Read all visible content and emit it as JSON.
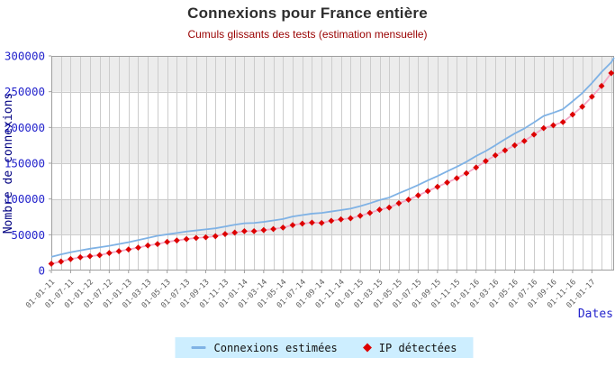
{
  "header": {
    "title": "Connexions pour France entière",
    "subtitle": "Cumuls glissants des tests (estimation mensuelle)"
  },
  "y_axis": {
    "title": "Nombre de connexions",
    "tick_labels": [
      "0",
      "50000",
      "100000",
      "150000",
      "200000",
      "250000",
      "300000"
    ]
  },
  "x_axis": {
    "title": "Dates"
  },
  "legend": {
    "items": [
      {
        "label": "Connexions estimées",
        "swatch": "line"
      },
      {
        "label": "IP détectées",
        "swatch": "diamond"
      }
    ]
  },
  "colors": {
    "title": "#2e2e2e",
    "subtitle": "#990000",
    "band": "#ececec",
    "grid": "#cccccc",
    "border": "#9e9e9e",
    "yTick": "#2424cc",
    "xTick": "#5a5a5a",
    "yTitle": "#000080",
    "xTitle": "#2424cc",
    "legend_bg": "#cdeeff",
    "estimated_line": "#7fb2e5",
    "detected_line": "#f4a8c6",
    "detected_marker": "#dd0000"
  },
  "chart_data": {
    "type": "line",
    "title": "Connexions pour France entière",
    "subtitle": "Cumuls glissants des tests (estimation mensuelle)",
    "xlabel": "Dates",
    "ylabel": "Nombre de connexions",
    "ylim": [
      0,
      300000
    ],
    "y_tick_step": 50000,
    "grid": true,
    "legend_position": "bottom",
    "x_tick_labels": [
      "01-01-11",
      "01-07-11",
      "01-01-12",
      "01-07-12",
      "01-01-13",
      "01-03-13",
      "01-05-13",
      "01-07-13",
      "01-09-13",
      "01-11-13",
      "01-01-14",
      "01-03-14",
      "01-05-14",
      "01-07-14",
      "01-09-14",
      "01-11-14",
      "01-01-15",
      "01-03-15",
      "01-05-15",
      "01-07-15",
      "01-09-15",
      "01-11-15",
      "01-01-16",
      "01-03-16",
      "01-05-16",
      "01-07-16",
      "01-09-16",
      "01-11-16",
      "01-01-17"
    ],
    "label_every": 2,
    "series": [
      {
        "name": "Connexions estimées",
        "style": "line",
        "values": [
          19000,
          22500,
          25500,
          28000,
          30500,
          32500,
          34500,
          37000,
          39500,
          42500,
          45500,
          48500,
          50500,
          52500,
          54500,
          56000,
          57500,
          59000,
          61500,
          64000,
          66000,
          66500,
          68000,
          70000,
          72000,
          75500,
          77500,
          79500,
          80500,
          82500,
          84500,
          86500,
          90000,
          94000,
          98500,
          102000,
          108000,
          113500,
          119500,
          126000,
          132000,
          138500,
          145000,
          152000,
          160000,
          167000,
          175000,
          183500,
          191500,
          198500,
          207000,
          216000,
          220500,
          225500,
          236500,
          248000,
          262000,
          277500,
          291000
        ]
      },
      {
        "name": "IP détectées",
        "style": "line+diamond",
        "values": [
          9500,
          12500,
          16000,
          18500,
          20000,
          21500,
          24500,
          27000,
          29500,
          32000,
          35000,
          37000,
          40000,
          42000,
          44000,
          45500,
          46500,
          48000,
          51000,
          53000,
          55000,
          55000,
          56500,
          58000,
          60000,
          63500,
          65500,
          67000,
          66500,
          69500,
          71500,
          73000,
          76500,
          80500,
          85000,
          88000,
          94000,
          99000,
          105000,
          111000,
          117000,
          123000,
          129000,
          136000,
          144000,
          153000,
          161000,
          168000,
          175000,
          181000,
          190000,
          199000,
          203000,
          207500,
          218000,
          229000,
          243000,
          258000,
          276000
        ]
      }
    ],
    "estimated_edge_value": 297500
  }
}
